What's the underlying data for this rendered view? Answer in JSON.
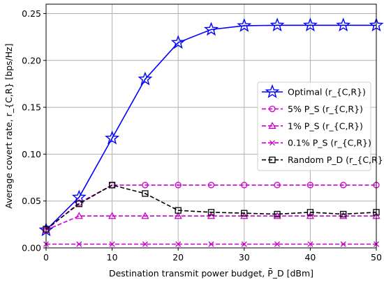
{
  "chart_data": {
    "type": "line",
    "xlabel": "Destination transmit power budget, P̄_D [dBm]",
    "ylabel": "Average covert rate, r_{C,R} [bps/Hz]",
    "xlim": [
      0,
      50
    ],
    "ylim": [
      0,
      0.26
    ],
    "xticks": [
      0,
      10,
      20,
      30,
      40,
      50
    ],
    "yticks": [
      0.0,
      0.05,
      0.1,
      0.15,
      0.2,
      0.25
    ],
    "xtick_labels": [
      "0",
      "10",
      "20",
      "30",
      "40",
      "50"
    ],
    "ytick_labels": [
      "0.00",
      "0.05",
      "0.10",
      "0.15",
      "0.20",
      "0.25"
    ],
    "grid": true,
    "legend_position": "center-right",
    "x": [
      0,
      5,
      10,
      15,
      20,
      25,
      30,
      35,
      40,
      45,
      50
    ],
    "series": [
      {
        "name": "Optimal (r_{C,R})",
        "color": "#0000ff",
        "dash": "solid",
        "marker": "star",
        "values": [
          0.019,
          0.054,
          0.117,
          0.18,
          0.219,
          0.233,
          0.237,
          0.2375,
          0.2375,
          0.2375,
          0.2375
        ]
      },
      {
        "name": "5% P_S (r_{C,R})",
        "color": "#cc00cc",
        "dash": "dashed",
        "marker": "circle",
        "values": [
          0.019,
          0.048,
          0.067,
          0.067,
          0.067,
          0.067,
          0.067,
          0.067,
          0.067,
          0.067,
          0.067
        ]
      },
      {
        "name": "1% P_S (r_{C,R})",
        "color": "#cc00cc",
        "dash": "dashed",
        "marker": "triangle",
        "values": [
          0.019,
          0.034,
          0.034,
          0.034,
          0.034,
          0.034,
          0.034,
          0.034,
          0.034,
          0.034,
          0.034
        ]
      },
      {
        "name": "0.1% P_S (r_{C,R})",
        "color": "#cc00cc",
        "dash": "dashed",
        "marker": "x",
        "values": [
          0.004,
          0.004,
          0.004,
          0.004,
          0.004,
          0.004,
          0.004,
          0.004,
          0.004,
          0.004,
          0.004
        ]
      },
      {
        "name": "Random P_D (r_{C,R})",
        "color": "#000000",
        "dash": "dashed",
        "marker": "square",
        "values": [
          0.02,
          0.047,
          0.067,
          0.058,
          0.04,
          0.038,
          0.037,
          0.036,
          0.038,
          0.036,
          0.038
        ]
      }
    ]
  }
}
